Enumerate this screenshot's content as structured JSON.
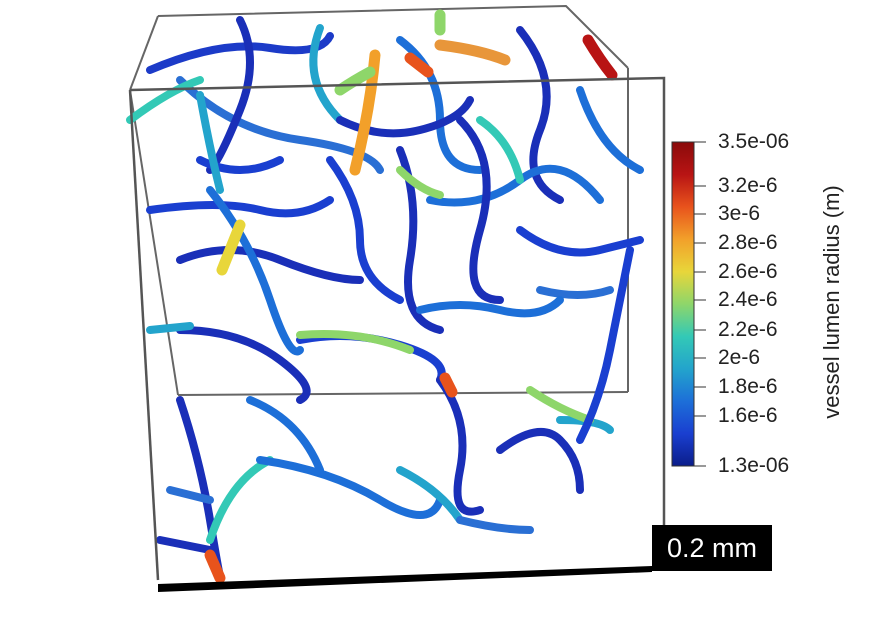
{
  "scene": {
    "background": "#ffffff",
    "box_edge_color": "#555555",
    "scale_bar": {
      "label": "0.2 mm",
      "bar_color": "#000000",
      "text_color": "#ffffff"
    }
  },
  "colorbar": {
    "title": "vessel lumen radius (m)",
    "tick_labels": [
      "3.5e-06",
      "3.2e-6",
      "3e-6",
      "2.8e-6",
      "2.6e-6",
      "2.4e-6",
      "2.2e-6",
      "2e-6",
      "1.8e-6",
      "1.6e-6",
      "1.3e-06"
    ],
    "range": [
      1.3e-06,
      3.5e-06
    ],
    "colormap": [
      "#0b1d8a",
      "#1a3fd0",
      "#1d6fd8",
      "#23a4cc",
      "#33c9b6",
      "#8ed66a",
      "#e8d63a",
      "#f2a02a",
      "#e8531c",
      "#b81414",
      "#8a0a0a"
    ]
  }
}
